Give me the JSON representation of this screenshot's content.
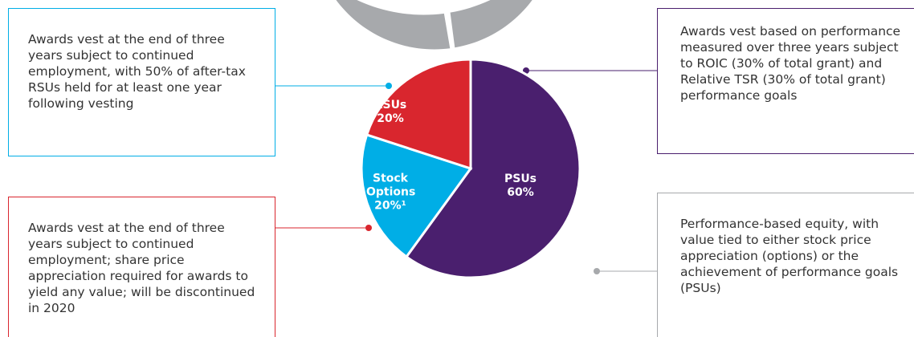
{
  "chart_data": {
    "type": "pie",
    "categories": [
      "PSUs",
      "RSUs",
      "Stock Options"
    ],
    "values": [
      60,
      20,
      20
    ],
    "value_labels": [
      "60%",
      "20%",
      "20%¹"
    ],
    "colors": [
      "#4a1f6e",
      "#00aee6",
      "#d9262e"
    ],
    "ring_color": "#a7a9ac",
    "annotations": [
      "Awards vest at the end of three years subject to continued employment, with 50% of after-tax RSUs held for at least one year following vesting",
      "Awards vest at the end of three years subject to continued employment; share price appreciation required for awards to yield any value; will be discontinued in 2020",
      "Awards vest based on performance measured over three years subject to ROIC (30% of total grant) and Relative TSR (30% of total grant) performance goals",
      "Performance-based equity, with value tied to either stock price appreciation (options) or the achievement of performance goals (PSUs)"
    ]
  }
}
